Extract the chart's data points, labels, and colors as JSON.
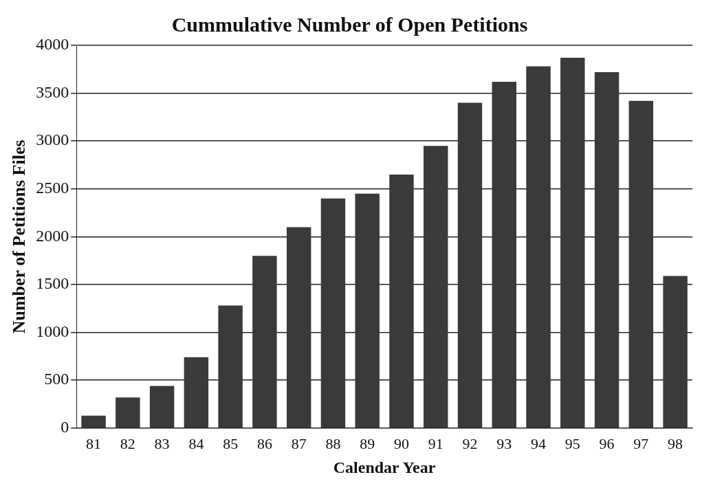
{
  "chart_data": {
    "type": "bar",
    "title": "Cummulative Number of Open Petitions",
    "xlabel": "Calendar Year",
    "ylabel": "Number of Petitions Files",
    "categories": [
      "81",
      "82",
      "83",
      "84",
      "85",
      "86",
      "87",
      "88",
      "89",
      "90",
      "91",
      "92",
      "93",
      "94",
      "95",
      "96",
      "97",
      "98"
    ],
    "values": [
      130,
      320,
      440,
      740,
      1280,
      1800,
      2100,
      2400,
      2450,
      2650,
      2950,
      3400,
      3620,
      3780,
      3870,
      3720,
      3420,
      1590
    ],
    "color": "#3a3a3a",
    "ylim": [
      0,
      4000
    ],
    "yticks": [
      0,
      500,
      1000,
      1500,
      2000,
      2500,
      3000,
      3500,
      4000
    ],
    "grid": "y",
    "legend": false
  }
}
